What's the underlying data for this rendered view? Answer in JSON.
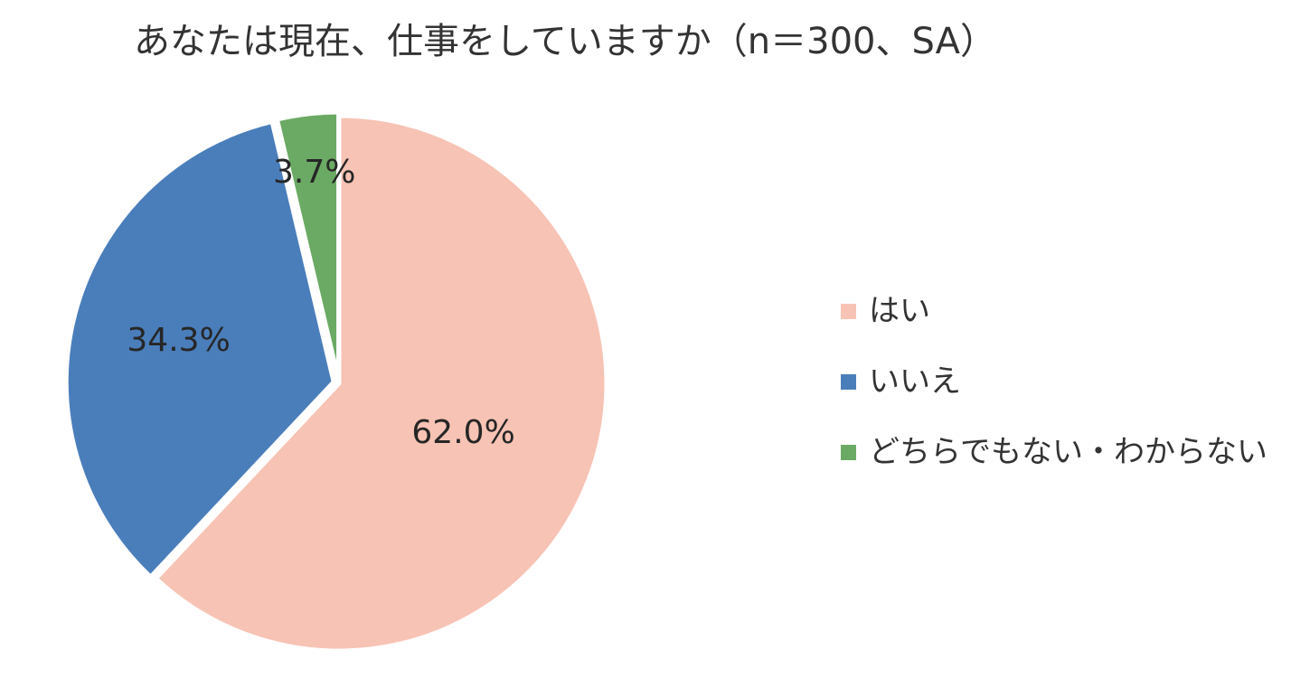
{
  "chart_data": {
    "type": "pie",
    "title": "あなたは現在、仕事をしていますか（n＝300、SA）",
    "categories": [
      "はい",
      "いいえ",
      "どちらでもない・わからない"
    ],
    "values": [
      62.0,
      34.3,
      3.7
    ],
    "data_labels": [
      "62.0%",
      "34.3%",
      "3.7%"
    ],
    "colors": [
      "#F7C3B4",
      "#4A7EBB",
      "#6BAA64"
    ],
    "start_angle": "12 o'clock",
    "direction": "clockwise",
    "legend_position": "right"
  }
}
